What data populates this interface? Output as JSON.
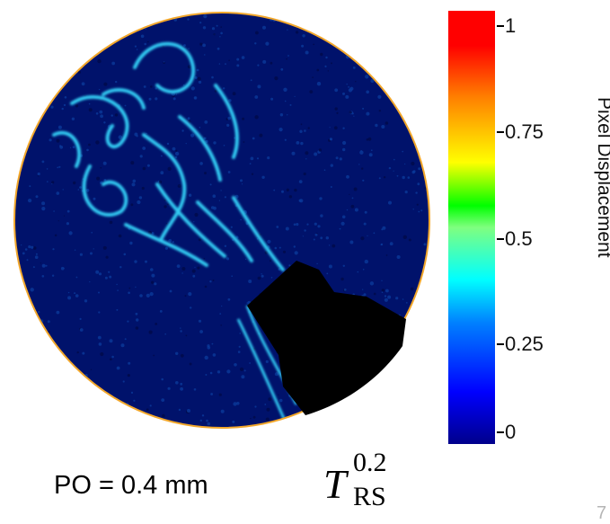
{
  "colorbar": {
    "title": "Pixel Displacement",
    "ticks": [
      "1",
      "0.75",
      "0.5",
      "0.25",
      "0"
    ]
  },
  "caption": {
    "po_label": "PO = 0.4 mm",
    "t_base": "T",
    "t_sup": "0.2",
    "t_sub": "RS"
  },
  "page_mark": "7",
  "colors": {
    "background": "#00126b",
    "streak": "#31c9f2",
    "mask": "#000000"
  }
}
